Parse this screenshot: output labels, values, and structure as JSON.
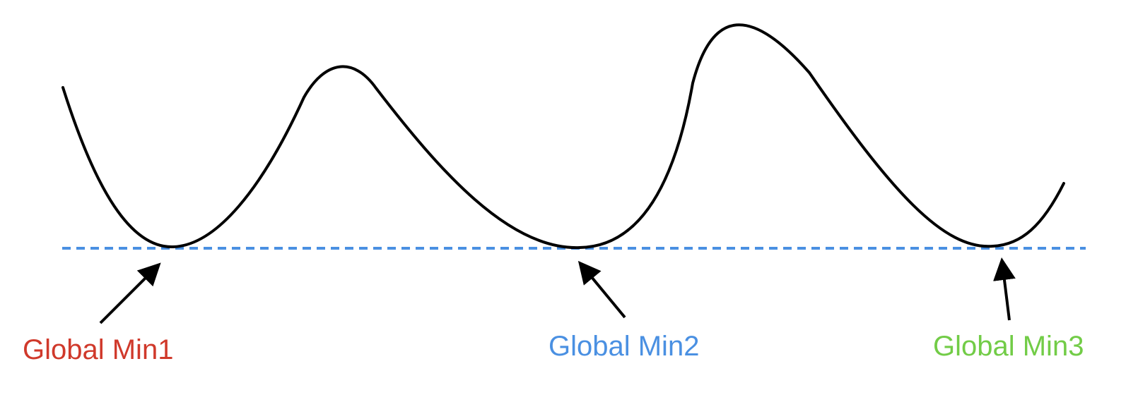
{
  "labels": {
    "min1": "Global Min1",
    "min2": "Global Min2",
    "min3": "Global Min3"
  },
  "colors": {
    "curve": "#000000",
    "baseline": "#4a90e2",
    "min1": "#d0392b",
    "min2": "#4a90e2",
    "min3": "#72cc47"
  }
}
